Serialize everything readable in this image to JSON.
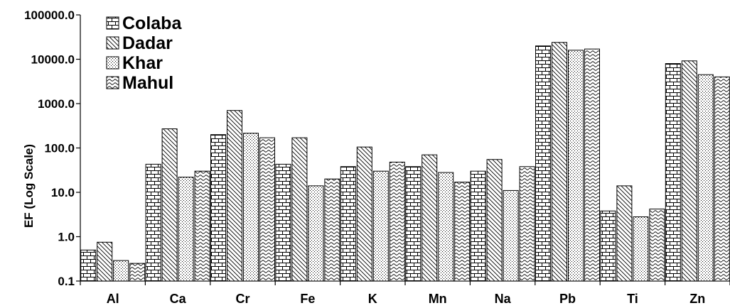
{
  "chart_data": {
    "type": "bar",
    "title": "",
    "xlabel": "",
    "ylabel": "EF (Log Scale)",
    "yscale": "log",
    "ylim": [
      0.1,
      100000
    ],
    "yticks": [
      "0.1",
      "1.0",
      "10.0",
      "100.0",
      "1000.0",
      "10000.0",
      "100000.0"
    ],
    "grid": false,
    "legend_position": "top-left",
    "categories": [
      "Al",
      "Ca",
      "Cr",
      "Fe",
      "K",
      "Mn",
      "Na",
      "Pb",
      "Ti",
      "Zn"
    ],
    "series": [
      {
        "name": "Colaba",
        "pattern": "brick",
        "values": [
          0.5,
          43,
          200,
          43,
          38,
          38,
          30,
          20000,
          3.8,
          8000
        ]
      },
      {
        "name": "Dadar",
        "pattern": "diagonal",
        "values": [
          0.75,
          270,
          700,
          170,
          105,
          70,
          55,
          24000,
          14,
          9200
        ]
      },
      {
        "name": "Khar",
        "pattern": "dots",
        "values": [
          0.29,
          22,
          215,
          14,
          30,
          28,
          11,
          16000,
          2.8,
          4500
        ]
      },
      {
        "name": "Mahul",
        "pattern": "wave",
        "values": [
          0.25,
          30,
          170,
          20,
          48,
          17,
          38,
          17000,
          4.2,
          4000
        ]
      }
    ]
  }
}
